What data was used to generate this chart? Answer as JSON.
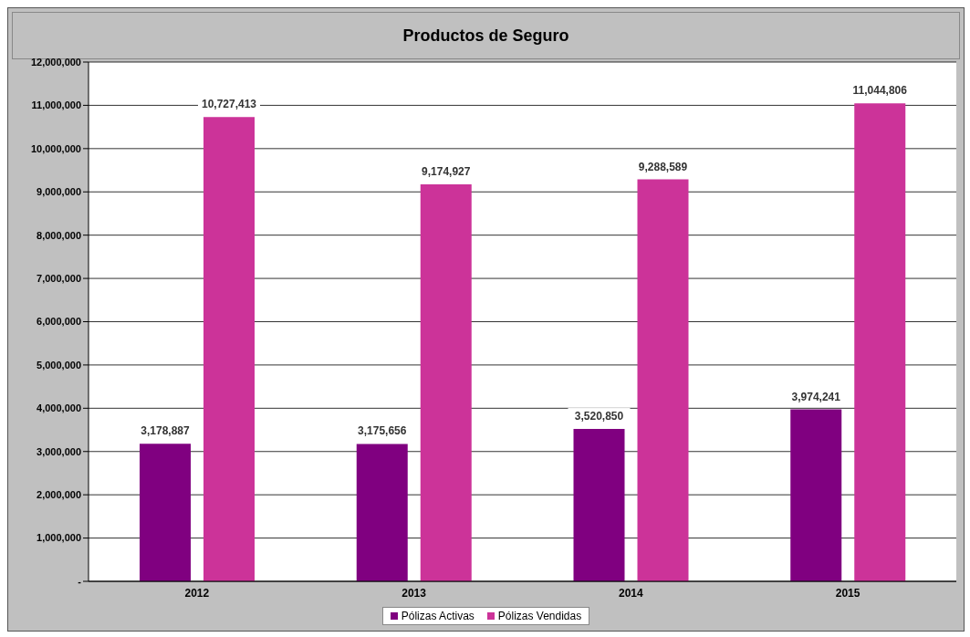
{
  "chart_data": {
    "type": "bar",
    "title": "Productos de Seguro",
    "categories": [
      "2012",
      "2013",
      "2014",
      "2015"
    ],
    "series": [
      {
        "name": "Pólizas Activas",
        "color": "#800080",
        "values": [
          3178887,
          3175656,
          3520850,
          3974241
        ],
        "value_labels": [
          "3,178,887",
          "3,175,656",
          "3,520,850",
          "3,974,241"
        ]
      },
      {
        "name": "Pólizas Vendidas",
        "color": "#cc3399",
        "values": [
          10727413,
          9174927,
          9288589,
          11044806
        ],
        "value_labels": [
          "10,727,413",
          "9,174,927",
          "9,288,589",
          "11,044,806"
        ]
      }
    ],
    "ylim": [
      0,
      12000000
    ],
    "yticks": [
      {
        "value": 0,
        "label": "-"
      },
      {
        "value": 1000000,
        "label": "1,000,000"
      },
      {
        "value": 2000000,
        "label": "2,000,000"
      },
      {
        "value": 3000000,
        "label": "3,000,000"
      },
      {
        "value": 4000000,
        "label": "4,000,000"
      },
      {
        "value": 5000000,
        "label": "5,000,000"
      },
      {
        "value": 6000000,
        "label": "6,000,000"
      },
      {
        "value": 7000000,
        "label": "7,000,000"
      },
      {
        "value": 8000000,
        "label": "8,000,000"
      },
      {
        "value": 9000000,
        "label": "9,000,000"
      },
      {
        "value": 10000000,
        "label": "10,000,000"
      },
      {
        "value": 11000000,
        "label": "11,000,000"
      },
      {
        "value": 12000000,
        "label": "12,000,000"
      }
    ],
    "grid": "y",
    "legend": "bottom"
  }
}
